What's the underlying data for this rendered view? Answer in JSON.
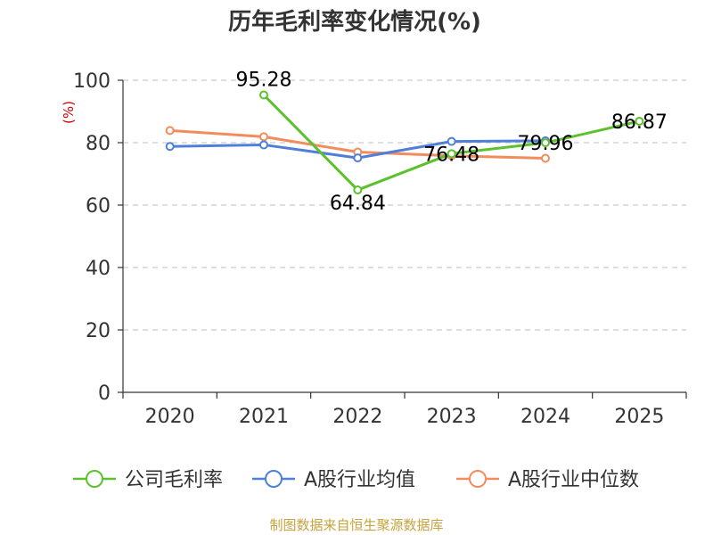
{
  "chart_data": {
    "type": "line",
    "title": "历年毛利率变化情况(%)",
    "ylabel": "(%)",
    "xlabel": "",
    "categories": [
      "2020",
      "2021",
      "2022",
      "2023",
      "2024",
      "2025"
    ],
    "ylim": [
      0,
      100
    ],
    "yticks": [
      0,
      20,
      40,
      60,
      80,
      100
    ],
    "grid": true,
    "legend_position": "bottom",
    "series": [
      {
        "name": "公司毛利率",
        "color": "#5cc12e",
        "values": [
          null,
          95.28,
          64.84,
          76.48,
          79.96,
          86.87
        ],
        "labels": [
          "",
          "95.28",
          "64.84",
          "76.48",
          "79.96",
          "86.87"
        ]
      },
      {
        "name": "A股行业均值",
        "color": "#4f7fd9",
        "values": [
          78.8,
          79.3,
          75.1,
          80.4,
          80.6,
          null
        ]
      },
      {
        "name": "A股行业中位数",
        "color": "#f28c5c",
        "values": [
          83.9,
          81.9,
          77.0,
          75.8,
          75.0,
          null
        ]
      }
    ]
  },
  "source": "制图数据来自恒生聚源数据库"
}
